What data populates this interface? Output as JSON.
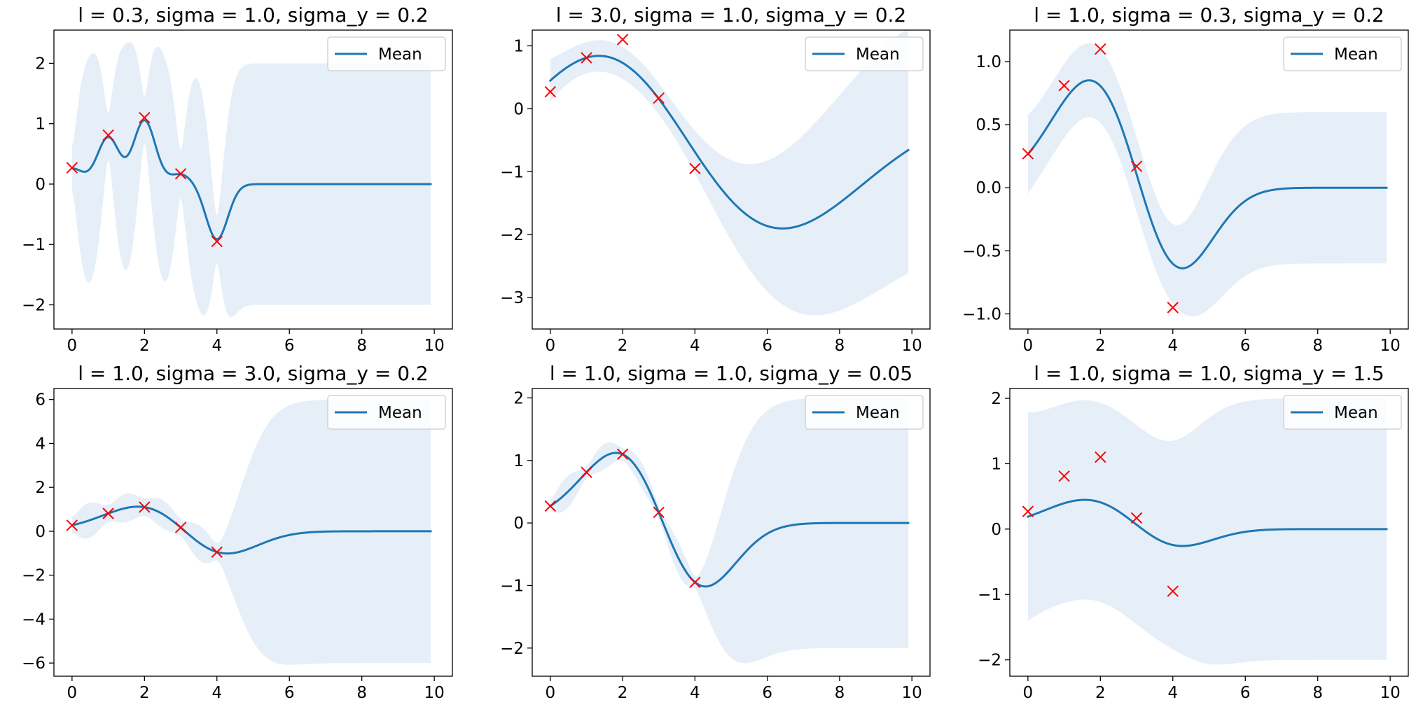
{
  "chart_data": [
    {
      "type": "line",
      "title": "l = 0.3, sigma = 1.0, sigma_y = 0.2",
      "params": {
        "l": 0.3,
        "sigma": 1.0,
        "sigma_y": 0.2
      },
      "xlim": [
        -0.5,
        10.5
      ],
      "ylim": [
        -2.4,
        2.55
      ],
      "xticks": [
        0,
        2,
        4,
        6,
        8,
        10
      ],
      "yticks": [
        -2,
        -1,
        0,
        1,
        2
      ],
      "legend": {
        "labels": [
          "Mean"
        ],
        "position": "top-right"
      },
      "observations": {
        "x": [
          0,
          1,
          2,
          3,
          4
        ],
        "y": [
          0.27,
          0.81,
          1.1,
          0.17,
          -0.95
        ]
      },
      "series": [
        {
          "name": "Mean",
          "color": "#1f77b4",
          "band_color": "#e6eff8"
        }
      ]
    },
    {
      "type": "line",
      "title": "l = 3.0, sigma = 1.0, sigma_y = 0.2",
      "params": {
        "l": 3.0,
        "sigma": 1.0,
        "sigma_y": 0.2
      },
      "xlim": [
        -0.5,
        10.5
      ],
      "ylim": [
        -3.5,
        1.25
      ],
      "xticks": [
        0,
        2,
        4,
        6,
        8,
        10
      ],
      "yticks": [
        -3,
        -2,
        -1,
        0,
        1
      ],
      "legend": {
        "labels": [
          "Mean"
        ],
        "position": "top-right"
      },
      "observations": {
        "x": [
          0,
          1,
          2,
          3,
          4
        ],
        "y": [
          0.27,
          0.81,
          1.1,
          0.17,
          -0.95
        ]
      },
      "series": [
        {
          "name": "Mean",
          "color": "#1f77b4",
          "band_color": "#e6eff8"
        }
      ]
    },
    {
      "type": "line",
      "title": "l = 1.0, sigma = 0.3, sigma_y = 0.2",
      "params": {
        "l": 1.0,
        "sigma": 0.3,
        "sigma_y": 0.2
      },
      "xlim": [
        -0.5,
        10.5
      ],
      "ylim": [
        -1.12,
        1.25
      ],
      "xticks": [
        0,
        2,
        4,
        6,
        8,
        10
      ],
      "yticks": [
        -1.0,
        -0.5,
        0.0,
        0.5,
        1.0
      ],
      "ytick_decimals": 1,
      "legend": {
        "labels": [
          "Mean"
        ],
        "position": "top-right"
      },
      "observations": {
        "x": [
          0,
          1,
          2,
          3,
          4
        ],
        "y": [
          0.27,
          0.81,
          1.1,
          0.17,
          -0.95
        ]
      },
      "series": [
        {
          "name": "Mean",
          "color": "#1f77b4",
          "band_color": "#e6eff8"
        }
      ]
    },
    {
      "type": "line",
      "title": "l = 1.0, sigma = 3.0, sigma_y = 0.2",
      "params": {
        "l": 1.0,
        "sigma": 3.0,
        "sigma_y": 0.2
      },
      "xlim": [
        -0.5,
        10.5
      ],
      "ylim": [
        -6.6,
        6.5
      ],
      "xticks": [
        0,
        2,
        4,
        6,
        8,
        10
      ],
      "yticks": [
        -6,
        -4,
        -2,
        0,
        2,
        4,
        6
      ],
      "legend": {
        "labels": [
          "Mean"
        ],
        "position": "top-right"
      },
      "observations": {
        "x": [
          0,
          1,
          2,
          3,
          4
        ],
        "y": [
          0.27,
          0.81,
          1.1,
          0.17,
          -0.95
        ]
      },
      "series": [
        {
          "name": "Mean",
          "color": "#1f77b4",
          "band_color": "#e6eff8"
        }
      ]
    },
    {
      "type": "line",
      "title": "l = 1.0, sigma = 1.0, sigma_y = 0.05",
      "params": {
        "l": 1.0,
        "sigma": 1.0,
        "sigma_y": 0.05
      },
      "xlim": [
        -0.5,
        10.5
      ],
      "ylim": [
        -2.45,
        2.15
      ],
      "xticks": [
        0,
        2,
        4,
        6,
        8,
        10
      ],
      "yticks": [
        -2,
        -1,
        0,
        1,
        2
      ],
      "legend": {
        "labels": [
          "Mean"
        ],
        "position": "top-right"
      },
      "observations": {
        "x": [
          0,
          1,
          2,
          3,
          4
        ],
        "y": [
          0.27,
          0.81,
          1.1,
          0.17,
          -0.95
        ]
      },
      "series": [
        {
          "name": "Mean",
          "color": "#1f77b4",
          "band_color": "#e6eff8"
        }
      ]
    },
    {
      "type": "line",
      "title": "l = 1.0, sigma = 1.0, sigma_y = 1.5",
      "params": {
        "l": 1.0,
        "sigma": 1.0,
        "sigma_y": 1.5
      },
      "xlim": [
        -0.5,
        10.5
      ],
      "ylim": [
        -2.25,
        2.15
      ],
      "xticks": [
        0,
        2,
        4,
        6,
        8,
        10
      ],
      "yticks": [
        -2,
        -1,
        0,
        1,
        2
      ],
      "legend": {
        "labels": [
          "Mean"
        ],
        "position": "top-right"
      },
      "observations": {
        "x": [
          0,
          1,
          2,
          3,
          4
        ],
        "y": [
          0.27,
          0.81,
          1.1,
          0.17,
          -0.95
        ]
      },
      "series": [
        {
          "name": "Mean",
          "color": "#1f77b4",
          "band_color": "#e6eff8"
        }
      ]
    }
  ],
  "colors": {
    "mean_line": "#1f77b4",
    "band": "#e6eff8",
    "marker": "#ff0000"
  }
}
